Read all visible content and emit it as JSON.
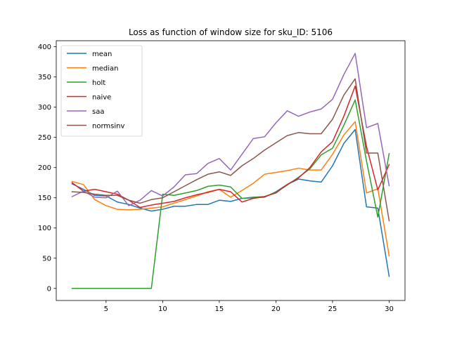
{
  "chart_data": {
    "type": "line",
    "title": "Loss as function of window size for sku_ID: 5106",
    "xlabel": "",
    "ylabel": "",
    "xlim": [
      0.6,
      31.4
    ],
    "ylim": [
      -20,
      410
    ],
    "xticks": [
      5,
      10,
      15,
      20,
      25,
      30
    ],
    "yticks": [
      0,
      50,
      100,
      150,
      200,
      250,
      300,
      350,
      400
    ],
    "grid": false,
    "legend_position": "top-left",
    "x": [
      2,
      3,
      4,
      5,
      6,
      7,
      8,
      9,
      10,
      11,
      12,
      13,
      14,
      15,
      16,
      17,
      18,
      19,
      20,
      21,
      22,
      23,
      24,
      25,
      26,
      27,
      28,
      29,
      30
    ],
    "series": [
      {
        "name": "mean",
        "color": "#1f77b4",
        "values": [
          173,
          164,
          154,
          153,
          143,
          139,
          133,
          128,
          131,
          136,
          136,
          139,
          139,
          146,
          144,
          149,
          150,
          151,
          160,
          172,
          181,
          178,
          176,
          203,
          240,
          263,
          135,
          133,
          20
        ]
      },
      {
        "name": "median",
        "color": "#ff7f0e",
        "values": [
          177,
          172,
          147,
          137,
          131,
          130,
          131,
          133,
          135,
          141,
          147,
          153,
          160,
          164,
          151,
          162,
          174,
          189,
          192,
          195,
          199,
          196,
          196,
          222,
          254,
          276,
          158,
          165,
          54
        ]
      },
      {
        "name": "holt",
        "color": "#2ca02c",
        "values": [
          0,
          0,
          0,
          0,
          0,
          0,
          0,
          0,
          156,
          154,
          158,
          162,
          169,
          171,
          168,
          149,
          151,
          152,
          159,
          171,
          184,
          198,
          221,
          232,
          270,
          312,
          211,
          118,
          223
        ]
      },
      {
        "name": "naive",
        "color": "#d62728",
        "values": [
          175,
          161,
          164,
          160,
          156,
          146,
          134,
          138,
          141,
          144,
          150,
          155,
          159,
          164,
          160,
          143,
          149,
          152,
          158,
          172,
          183,
          200,
          226,
          243,
          285,
          335,
          235,
          163,
          205
        ]
      },
      {
        "name": "saa",
        "color": "#9467bd",
        "values": [
          152,
          161,
          151,
          150,
          161,
          137,
          146,
          162,
          153,
          168,
          188,
          190,
          207,
          215,
          196,
          222,
          248,
          251,
          274,
          294,
          285,
          292,
          297,
          313,
          354,
          389,
          266,
          273,
          170
        ]
      },
      {
        "name": "normsinv",
        "color": "#8c564b",
        "values": [
          160,
          159,
          156,
          154,
          154,
          146,
          141,
          147,
          150,
          160,
          170,
          180,
          189,
          193,
          187,
          203,
          215,
          229,
          241,
          253,
          258,
          256,
          256,
          280,
          320,
          347,
          224,
          224,
          112
        ]
      }
    ]
  }
}
